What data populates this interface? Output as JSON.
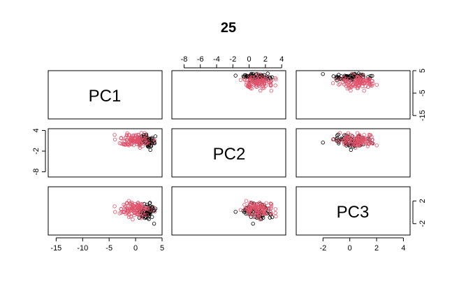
{
  "title": "25",
  "colors": {
    "group1": "#000000",
    "group2": "#DF536B"
  },
  "chart_data": {
    "type": "scatter",
    "title": "25",
    "variables": [
      "PC1",
      "PC2",
      "PC3"
    ],
    "ranges": {
      "PC1": [
        -16.5,
        5
      ],
      "PC2": [
        -9.5,
        4.5
      ],
      "PC3": [
        -4,
        4.5
      ]
    },
    "ticks": {
      "PC1": [
        "-15",
        "-10",
        "-5",
        "0",
        "5"
      ],
      "PC2": [
        "-8",
        "-6",
        "-4",
        "-2",
        "0",
        "2",
        "4"
      ],
      "PC2_left": [
        "4",
        "-2",
        "-8"
      ],
      "PC3": [
        "-2",
        "0",
        "2",
        "4"
      ],
      "PC3_right": [
        "2",
        "-2"
      ],
      "PC1_right": [
        "5",
        "-5",
        "-15"
      ]
    },
    "series": [
      {
        "group": "group1",
        "count": 70,
        "mean": [
          2.1,
          0.9,
          0.1
        ],
        "sd": [
          0.7,
          0.9,
          0.8
        ]
      },
      {
        "group": "group2",
        "count": 110,
        "mean": [
          -0.2,
          1.1,
          0.6
        ],
        "sd": [
          1.4,
          0.9,
          0.7
        ]
      }
    ],
    "grid": false,
    "legend": "none"
  }
}
